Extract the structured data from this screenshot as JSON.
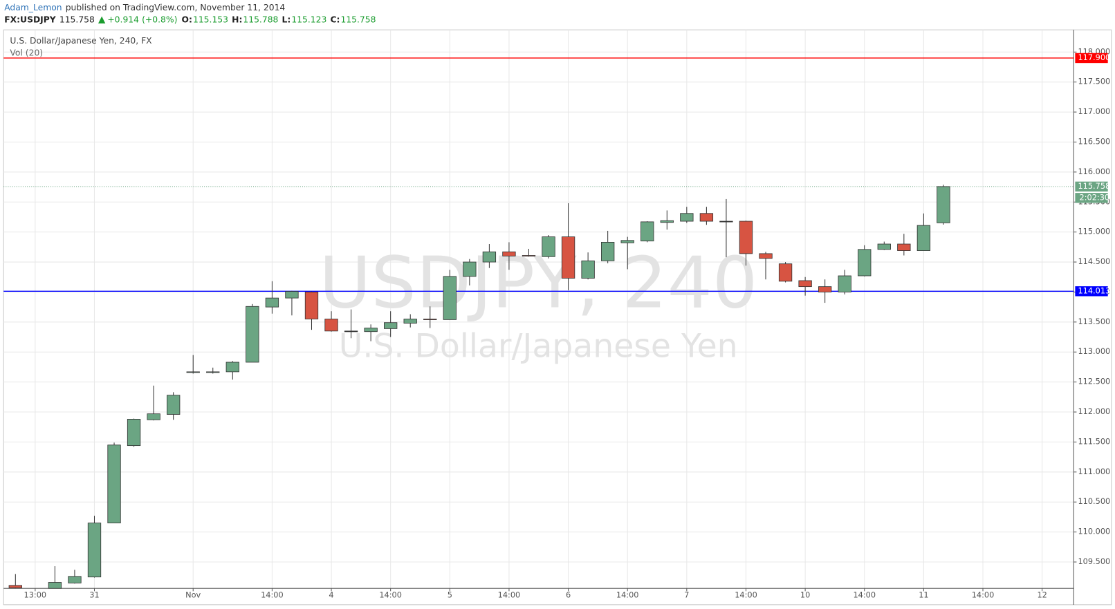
{
  "header": {
    "author": "Adam_Lemon",
    "published": "published on TradingView.com, November 11, 2014",
    "symbol": "FX:USDJPY",
    "last": "115.758",
    "change": "+0.914",
    "change_pct": "(+0.8%)",
    "ohlc": [
      {
        "label": "O:",
        "value": "115.153"
      },
      {
        "label": "H:",
        "value": "115.788"
      },
      {
        "label": "L:",
        "value": "115.123"
      },
      {
        "label": "C:",
        "value": "115.758"
      }
    ]
  },
  "chart_data": {
    "type": "candlestick",
    "title": "U.S. Dollar/Japanese Yen, 240, FX",
    "indicator": "Vol (20)",
    "watermark": "USDJPY, 240",
    "watermark_subtitle": "U.S. Dollar/Japanese Yen",
    "x": [
      0,
      2,
      3,
      4,
      5,
      6,
      7,
      8,
      9,
      10,
      11,
      12,
      13,
      14,
      15,
      16,
      17,
      18,
      19,
      20,
      21,
      22,
      23,
      24,
      25,
      26,
      27,
      28,
      29,
      30,
      31,
      32,
      33,
      34,
      35,
      36,
      37,
      38,
      39,
      40,
      41,
      42,
      43,
      44,
      45,
      46,
      47
    ],
    "open": [
      109.11,
      109.06,
      109.15,
      109.25,
      110.15,
      111.44,
      111.87,
      111.96,
      112.66,
      112.66,
      112.67,
      112.83,
      113.75,
      113.9,
      114.0,
      113.55,
      113.35,
      113.34,
      113.39,
      113.48,
      113.55,
      113.54,
      114.26,
      114.5,
      114.67,
      114.61,
      114.59,
      114.92,
      114.23,
      114.52,
      114.82,
      114.85,
      115.16,
      115.18,
      115.31,
      115.18,
      115.18,
      114.64,
      114.47,
      114.19,
      114.09,
      114.0,
      114.27,
      114.71,
      114.8,
      114.69,
      115.153
    ],
    "high": [
      109.3,
      109.43,
      109.37,
      110.27,
      111.49,
      111.89,
      112.44,
      112.33,
      112.95,
      112.74,
      112.85,
      113.8,
      114.18,
      114.02,
      114.01,
      113.68,
      113.71,
      113.46,
      113.68,
      113.63,
      113.76,
      114.37,
      114.55,
      114.8,
      114.83,
      114.72,
      114.95,
      115.48,
      114.66,
      115.02,
      114.92,
      115.18,
      115.36,
      115.42,
      115.42,
      115.55,
      115.19,
      114.67,
      114.5,
      114.25,
      114.21,
      114.37,
      114.78,
      114.84,
      114.97,
      115.31,
      115.788
    ],
    "low": [
      109.06,
      109.06,
      109.14,
      109.24,
      110.15,
      111.42,
      111.86,
      111.87,
      112.64,
      112.64,
      112.54,
      112.83,
      113.64,
      113.61,
      113.37,
      113.34,
      113.23,
      113.18,
      113.25,
      113.41,
      113.4,
      113.54,
      114.11,
      114.4,
      114.37,
      114.59,
      114.56,
      114.03,
      114.21,
      114.48,
      114.38,
      114.83,
      115.04,
      115.15,
      115.12,
      114.58,
      114.44,
      114.21,
      114.16,
      113.94,
      113.82,
      113.96,
      114.26,
      114.7,
      114.61,
      114.69,
      115.123
    ],
    "close": [
      109.07,
      109.16,
      109.26,
      110.15,
      111.45,
      111.88,
      111.97,
      112.28,
      112.67,
      112.67,
      112.83,
      113.76,
      113.9,
      114.01,
      113.55,
      113.35,
      113.35,
      113.4,
      113.49,
      113.55,
      113.54,
      114.26,
      114.5,
      114.67,
      114.6,
      114.6,
      114.92,
      114.23,
      114.52,
      114.83,
      114.86,
      115.17,
      115.19,
      115.31,
      115.18,
      115.18,
      114.64,
      114.56,
      114.18,
      114.09,
      114.0,
      114.27,
      114.71,
      114.8,
      114.69,
      115.11,
      115.758
    ],
    "up_color": "#6ba583",
    "down_color": "#d75442",
    "flat_color": "#333333",
    "xlim": [
      -0.6,
      53.6
    ],
    "xticks": [
      {
        "value": 1,
        "label": "13:00"
      },
      {
        "value": 4,
        "label": "31"
      },
      {
        "value": 9,
        "label": "Nov"
      },
      {
        "value": 13,
        "label": "14:00"
      },
      {
        "value": 16,
        "label": "4"
      },
      {
        "value": 19,
        "label": "14:00"
      },
      {
        "value": 22,
        "label": "5"
      },
      {
        "value": 25,
        "label": "14:00"
      },
      {
        "value": 28,
        "label": "6"
      },
      {
        "value": 31,
        "label": "14:00"
      },
      {
        "value": 34,
        "label": "7"
      },
      {
        "value": 37,
        "label": "14:00"
      },
      {
        "value": 40,
        "label": "10"
      },
      {
        "value": 43,
        "label": "14:00"
      },
      {
        "value": 46,
        "label": "11"
      },
      {
        "value": 49,
        "label": "14:00"
      },
      {
        "value": 52,
        "label": "12"
      }
    ],
    "ylim": [
      109.06,
      118.37
    ],
    "yticks": [
      {
        "value": 109.5,
        "label": "109.500"
      },
      {
        "value": 110,
        "label": "110.000"
      },
      {
        "value": 110.5,
        "label": "110.500"
      },
      {
        "value": 111,
        "label": "111.000"
      },
      {
        "value": 111.5,
        "label": "111.500"
      },
      {
        "value": 112,
        "label": "112.000"
      },
      {
        "value": 112.5,
        "label": "112.500"
      },
      {
        "value": 113,
        "label": "113.000"
      },
      {
        "value": 113.5,
        "label": "113.500"
      },
      {
        "value": 114,
        "label": "114.000"
      },
      {
        "value": 114.5,
        "label": "114.500"
      },
      {
        "value": 115,
        "label": "115.000"
      },
      {
        "value": 115.5,
        "label": "115.500"
      },
      {
        "value": 116,
        "label": "116.000"
      },
      {
        "value": 116.5,
        "label": "116.500"
      },
      {
        "value": 117,
        "label": "117.000"
      },
      {
        "value": 117.5,
        "label": "117.500"
      },
      {
        "value": 118,
        "label": "118.000"
      }
    ],
    "grid": true,
    "hlines": [
      {
        "value": 117.9,
        "label": "117.900",
        "color": "#ff0000"
      },
      {
        "value": 114.013,
        "label": "114.013",
        "color": "#0000ff"
      }
    ],
    "last_price": {
      "value": 115.758,
      "label": "115.758",
      "color": "#6ba583"
    },
    "countdown": "2:02:30"
  }
}
